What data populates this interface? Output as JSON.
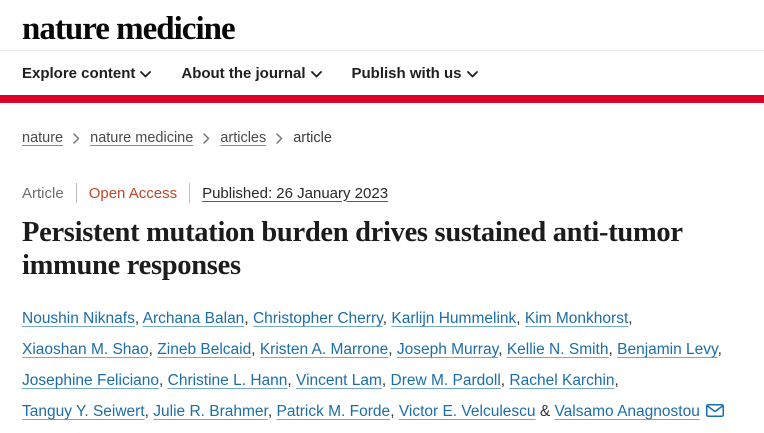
{
  "colors": {
    "accent_red": "#dc0028",
    "link_blue": "#1c6ea8",
    "open_access_orange": "#c0482b"
  },
  "header": {
    "logo_text": "nature medicine"
  },
  "nav": {
    "items": [
      {
        "label": "Explore content",
        "icon": "chevron-down-icon"
      },
      {
        "label": "About the journal",
        "icon": "chevron-down-icon"
      },
      {
        "label": "Publish with us",
        "icon": "chevron-down-icon"
      }
    ]
  },
  "breadcrumb": {
    "items": [
      {
        "label": "nature",
        "is_link": true
      },
      {
        "label": "nature medicine",
        "is_link": true
      },
      {
        "label": "articles",
        "is_link": true
      },
      {
        "label": "article",
        "is_link": false
      }
    ]
  },
  "article_meta": {
    "type_label": "Article",
    "access_label": "Open Access",
    "published_text": "Published: 26 January 2023"
  },
  "article": {
    "title": "Persistent mutation burden drives sustained anti-tumor immune responses",
    "authors": [
      "Noushin Niknafs",
      "Archana Balan",
      "Christopher Cherry",
      "Karlijn Hummelink",
      "Kim Monkhorst",
      "Xiaoshan M. Shao",
      "Zineb Belcaid",
      "Kristen A. Marrone",
      "Joseph Murray",
      "Kellie N. Smith",
      "Benjamin Levy",
      "Josephine Feliciano",
      "Christine L. Hann",
      "Vincent Lam",
      "Drew M. Pardoll",
      "Rachel Karchin",
      "Tanguy Y. Seiwert",
      "Julie R. Brahmer",
      "Patrick M. Forde",
      "Victor E. Velculescu",
      "Valsamo Anagnostou"
    ],
    "separator": ", ",
    "last_separator": " & ",
    "corresponding_author": "Valsamo Anagnostou",
    "corresponding_icon": "envelope-icon"
  }
}
